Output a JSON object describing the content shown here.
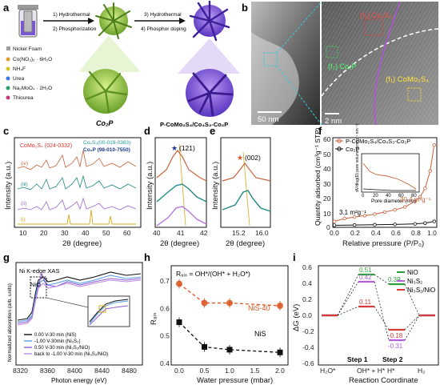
{
  "panel_labels": [
    "a",
    "b",
    "c",
    "d",
    "e",
    "f",
    "g",
    "h",
    "i"
  ],
  "panel_a": {
    "steps": [
      "1) Hydrothermal",
      "2) Phosphorization",
      "3) Hydrothermal",
      "4) Phosphor doping"
    ],
    "legend": [
      "Nickel Foam",
      "Co(NO₃)₂ · 6H₂O",
      "NH₄F",
      "Urea",
      "Na₂MoO₄ · 2H₂O",
      "Thiourea"
    ],
    "product1": "Co₂P",
    "product2": "P-CoMo₂S₄/Co₄S₃-Co₂P"
  },
  "panel_b": {
    "scale_left": "50 nm",
    "scale_right": "2 nm",
    "f1": "(f₁) CoMo₂S₄",
    "f2": "(f₂) Co₂P",
    "f3": "(f₃) Co₄S₃"
  },
  "panel_c": {
    "legend_red": "CoMo₂S₄ (024-0332)",
    "legend_teal": "Co₄S₃(00-019-0363)",
    "legend_navy": "Co₂P (98-010-7550)",
    "curve_labels": [
      "(iv)",
      "(iii)",
      "(ii)",
      "(i)"
    ],
    "xlabel": "2θ (degree)",
    "ylabel": "Intensity (a.u.)",
    "xticks": [
      "10",
      "20",
      "30",
      "40",
      "50",
      "60"
    ]
  },
  "panel_d": {
    "peak": "(121)",
    "xlabel": "2θ (degree)",
    "ylabel": "Intensity (a.u.)",
    "xticks": [
      "40",
      "41",
      "42"
    ]
  },
  "panel_e": {
    "peak": "(002)",
    "xlabel": "2θ (degree)",
    "ylabel": "Intensity (a.u.)",
    "xticks": [
      "15.2",
      "16.0"
    ]
  },
  "panel_f": {
    "legend": [
      "P-CoMo₂S₄/Co₄S₃-Co₂P",
      "Co₂P"
    ],
    "area1": "3.1 m²g⁻¹",
    "area2": "30.4 m²g⁻¹",
    "xlabel": "Relative pressure (P/P₀)",
    "ylabel": "Quantity adsorbed (cm³g⁻¹ STP)",
    "yticks": [
      "0",
      "10",
      "20",
      "30",
      "40",
      "50",
      "60"
    ],
    "xticks": [
      "0.0",
      "0.2",
      "0.4",
      "0.6",
      "0.8",
      "1.0"
    ],
    "inset_xlabel": "Pore diameter (nm)",
    "inset_ylabel": "dV/dlog(D) pore volume (cm³g⁻¹ nm⁻¹)",
    "inset_xticks": [
      "0",
      "20",
      "40",
      "60",
      "80"
    ]
  },
  "panel_g": {
    "title": "Ni K-edge XAS",
    "nio": "NiO",
    "legend": [
      "0.00 V-30 min (NiS)",
      "-1.00 V-30min (Ni₃S₂)",
      "0.50 V-30 min (Ni₃S₂/NiO)",
      "back to -1.00 V-30 min (Ni₃S₂/NiO)"
    ],
    "legend_colors": [
      "#111111",
      "#5aa0e6",
      "#8c5cd6",
      "#c08ce0"
    ],
    "xlabel": "Photon energy (eV)",
    "ylabel": "Normalized absorption (arb. units)",
    "xticks": [
      "8320",
      "8360",
      "8400",
      "8440",
      "8480"
    ]
  },
  "panel_h": {
    "formula": "R₉ᵢₛ = OH*/(OH* + H₂O*)",
    "ylabel": "R₉ᵢₛ",
    "xlabel": "Water pressure (mbar)",
    "xticks": [
      "0.0",
      "0.5",
      "1.0",
      "1.5",
      "2.0"
    ],
    "yticks": [
      "0.4",
      "0.5",
      "0.6",
      "0.7"
    ],
    "label_nis40": "NiS-40",
    "label_nis": "NiS"
  },
  "panel_i": {
    "legend": [
      "NiO",
      "Ni₃S₂",
      "Ni₃S₂/NiO"
    ],
    "ylabel": "ΔG (eV)",
    "xlabel": "Reaction Coordinate",
    "xticks": [
      "H₂O*",
      "OH* + H*",
      "H*",
      "H₂"
    ],
    "yticks": [
      "-0.6",
      "-0.4",
      "-0.2",
      "0.0",
      "0.2",
      "0.4",
      "0.6"
    ],
    "step1": "Step 1",
    "step2": "Step 2",
    "values": {
      "nio_s1": "0.51",
      "ni3s2_s1": "0.42",
      "het_s1": "0.11",
      "nio_s2": "0.39",
      "het_s2": "-0.18",
      "ni3s2_s2": "-0.31"
    }
  },
  "chart_data": [
    {
      "panel": "h",
      "type": "line",
      "xlabel": "Water pressure (mbar)",
      "ylabel": "R_dis",
      "ylim": [
        0.4,
        0.75
      ],
      "series": [
        {
          "name": "NiS-40",
          "x": [
            0.0,
            0.5,
            1.0,
            2.0
          ],
          "y": [
            0.69,
            0.62,
            0.62,
            0.61
          ],
          "color": "#d9541e"
        },
        {
          "name": "NiS",
          "x": [
            0.0,
            0.5,
            1.0,
            2.0
          ],
          "y": [
            0.55,
            0.46,
            0.45,
            0.44
          ],
          "color": "#111111"
        }
      ]
    },
    {
      "panel": "f",
      "type": "line",
      "xlabel": "Relative pressure (P/P0)",
      "ylabel": "Quantity adsorbed (cm3 g-1 STP)",
      "ylim": [
        0,
        60
      ],
      "series": [
        {
          "name": "P-CoMo2S4/Co4S3-Co2P",
          "x": [
            0.0,
            0.1,
            0.2,
            0.3,
            0.4,
            0.5,
            0.6,
            0.7,
            0.8,
            0.85,
            0.9,
            0.95,
            0.99
          ],
          "y": [
            3,
            5,
            6,
            7,
            8,
            9.5,
            11,
            13,
            17,
            20,
            26,
            38,
            56
          ],
          "color": "#c8643c"
        },
        {
          "name": "Co2P",
          "x": [
            0.0,
            0.2,
            0.4,
            0.6,
            0.8,
            0.9,
            0.99
          ],
          "y": [
            0.3,
            0.5,
            0.7,
            0.9,
            1.3,
            1.8,
            3.0
          ],
          "color": "#111111"
        }
      ]
    },
    {
      "panel": "i",
      "type": "line",
      "xlabel": "Reaction Coordinate",
      "ylabel": "ΔG (eV)",
      "categories": [
        "H2O*",
        "OH* + H*",
        "H*",
        "H2"
      ],
      "ylim": [
        -0.6,
        0.6
      ],
      "series": [
        {
          "name": "NiO",
          "values": [
            0,
            0.51,
            0.39,
            0
          ],
          "color": "#2e9e3a"
        },
        {
          "name": "Ni3S2",
          "values": [
            0,
            0.42,
            -0.31,
            0
          ],
          "color": "#b060d8"
        },
        {
          "name": "Ni3S2/NiO",
          "values": [
            0,
            0.11,
            -0.18,
            0
          ],
          "color": "#d23c3c"
        }
      ]
    }
  ]
}
